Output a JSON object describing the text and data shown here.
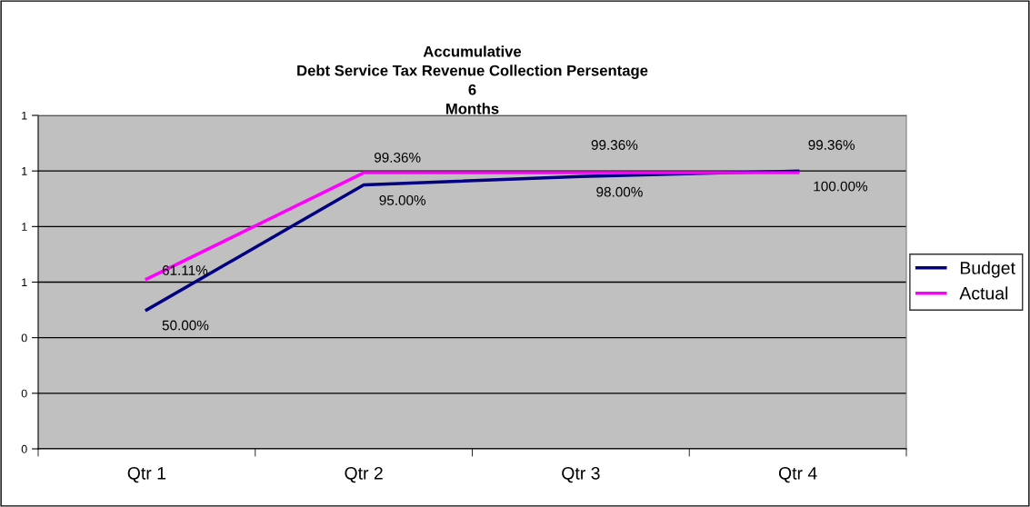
{
  "chart_data": {
    "type": "line",
    "title": "Accumulative\nDebt Service Tax Revenue Collection Persentage\n6\nMonths",
    "categories": [
      "Qtr 1",
      "Qtr 2",
      "Qtr 3",
      "Qtr 4"
    ],
    "series": [
      {
        "name": "Budget",
        "color": "#000080",
        "values": [
          0.5,
          0.95,
          0.98,
          1.0
        ],
        "value_labels": [
          "50.00%",
          "95.00%",
          "98.00%",
          "100.00%"
        ]
      },
      {
        "name": "Actual",
        "color": "#ff00ff",
        "values": [
          0.6111,
          0.9936,
          0.9936,
          0.9936
        ],
        "value_labels": [
          "61.11%",
          "99.36%",
          "99.36%",
          "99.36%"
        ]
      }
    ],
    "ylim": [
      0,
      1.2
    ],
    "yticks": [
      {
        "value": 0,
        "label": "0"
      },
      {
        "value": 0.2,
        "label": "0"
      },
      {
        "value": 0.4,
        "label": "0"
      },
      {
        "value": 0.6,
        "label": "1"
      },
      {
        "value": 0.8,
        "label": "1"
      },
      {
        "value": 1.0,
        "label": "1"
      },
      {
        "value": 1.2,
        "label": "1"
      }
    ],
    "grid": "y",
    "legend": "right",
    "marker": "none",
    "line_style": "solid"
  }
}
